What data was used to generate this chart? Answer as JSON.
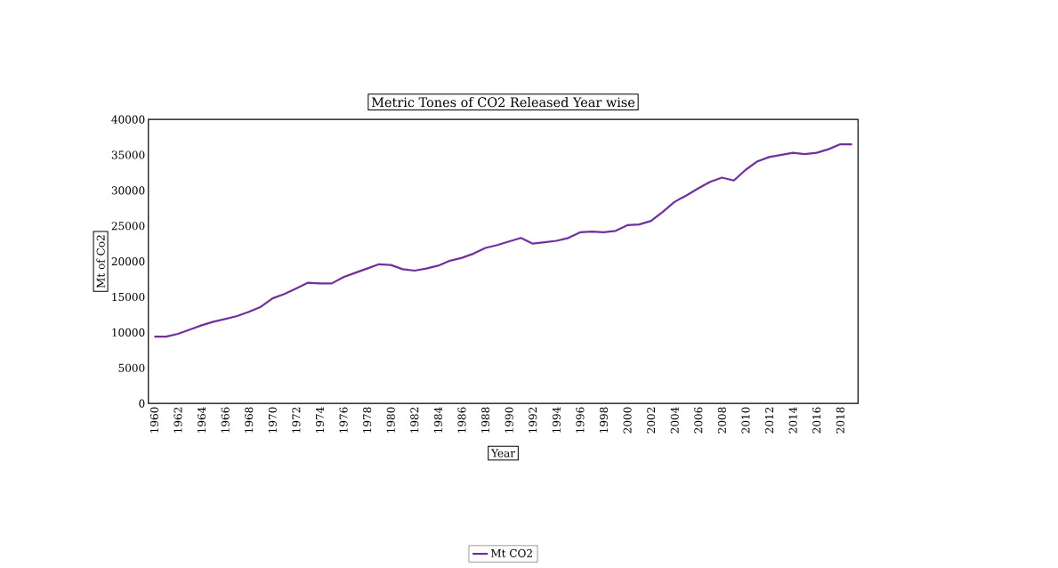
{
  "chart_data": {
    "type": "line",
    "title": "Metric Tones of CO2 Released Year wise",
    "xlabel": "Year",
    "ylabel": "Mt of Co2",
    "categories": [
      "1960",
      null,
      "1962",
      null,
      "1964",
      null,
      "1966",
      null,
      "1968",
      null,
      "1970",
      null,
      "1972",
      null,
      "1974",
      null,
      "1976",
      null,
      "1978",
      null,
      "1980",
      null,
      "1982",
      null,
      "1984",
      null,
      "1986",
      null,
      "1988",
      null,
      "1990",
      null,
      "1992",
      null,
      "1994",
      null,
      "1996",
      null,
      "1998",
      null,
      "2000",
      null,
      "2002",
      null,
      "2004",
      null,
      "2006",
      null,
      "2008",
      null,
      "2010",
      null,
      "2012",
      null,
      "2014",
      null,
      "2016",
      null,
      "2018",
      null
    ],
    "series": [
      {
        "name": "Mt CO2",
        "color": "#7030a0",
        "values": [
          9400,
          9400,
          9800,
          10400,
          11000,
          11500,
          11900,
          12300,
          12900,
          13600,
          14800,
          15400,
          16200,
          17000,
          16900,
          16900,
          17800,
          18400,
          19000,
          19600,
          19500,
          18900,
          18700,
          19000,
          19400,
          20100,
          20500,
          21100,
          21900,
          22300,
          22800,
          23300,
          22500,
          22700,
          22900,
          23300,
          24100,
          24200,
          24100,
          24300,
          25100,
          25200,
          25700,
          27000,
          28400,
          29300,
          30300,
          31200,
          31800,
          31400,
          32900,
          34100,
          34700,
          35000,
          35300,
          35100,
          35300,
          35800,
          36500,
          36500
        ]
      }
    ],
    "ylim": [
      0,
      40000
    ],
    "yticks": [
      0,
      5000,
      10000,
      15000,
      20000,
      25000,
      30000,
      35000,
      40000
    ],
    "grid": false,
    "legend": "bottom",
    "marker": "none",
    "line_style": "solid"
  }
}
